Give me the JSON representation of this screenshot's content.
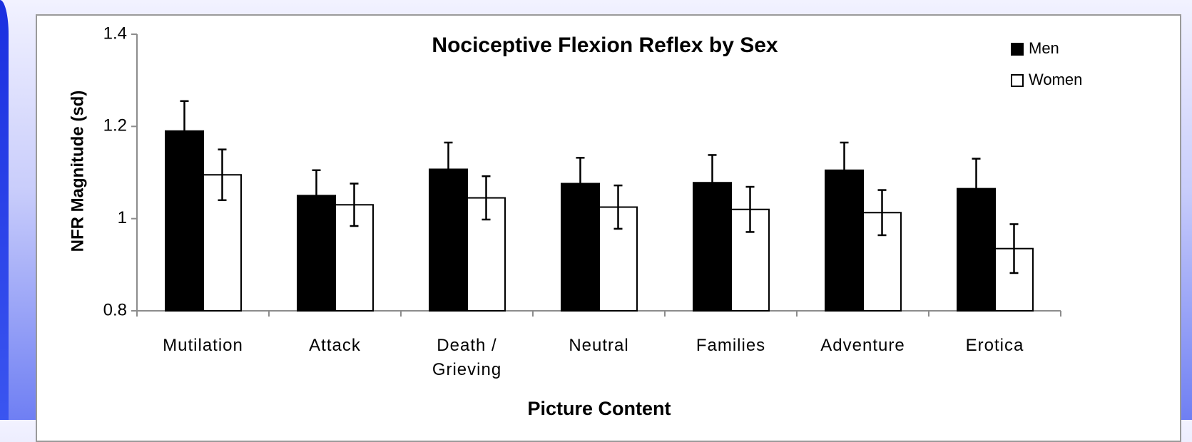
{
  "chart_data": {
    "type": "bar",
    "title": "Nociceptive Flexion Reflex by Sex",
    "x_label": "Picture Content",
    "y_label": "NFR Magnitude (sd)",
    "categories": [
      "Mutilation",
      "Attack",
      "Death / Grieving",
      "Neutral",
      "Families",
      "Adventure",
      "Erotica"
    ],
    "series": [
      {
        "name": "Men",
        "color": "#000000",
        "values": [
          1.19,
          1.05,
          1.107,
          1.076,
          1.078,
          1.105,
          1.065
        ],
        "errors": [
          0.065,
          0.055,
          0.058,
          0.056,
          0.06,
          0.06,
          0.065
        ]
      },
      {
        "name": "Women",
        "color": "#ffffff",
        "values": [
          1.095,
          1.03,
          1.045,
          1.025,
          1.02,
          1.013,
          0.935
        ],
        "errors": [
          0.055,
          0.046,
          0.047,
          0.047,
          0.049,
          0.049,
          0.053
        ]
      }
    ],
    "ylim": [
      0.8,
      1.4
    ],
    "yticks": [
      0.8,
      1,
      1.2,
      1.4
    ],
    "grid": false,
    "legend": "top-right"
  }
}
